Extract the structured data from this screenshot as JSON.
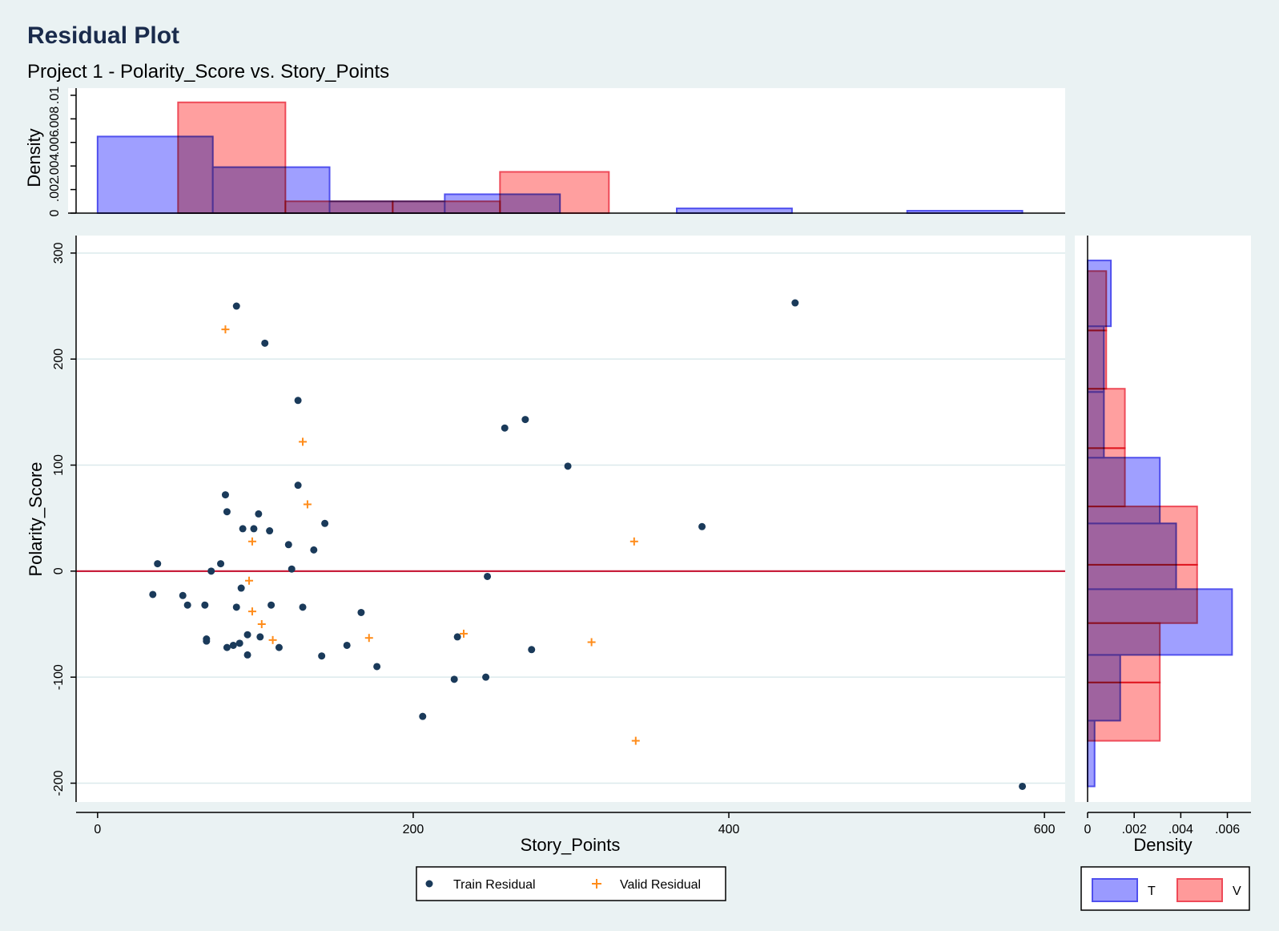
{
  "title": "Residual Plot",
  "subtitle": "Project 1 - Polarity_Score vs. Story_Points",
  "colors": {
    "background": "#eaf2f3",
    "train_fill": "#9a9aff",
    "train_edge": "#5050ee",
    "valid_fill": "#ff9a9a",
    "valid_edge": "#ee4a58",
    "train_marker": "#1a3a5a",
    "valid_marker": "#ff8c1a",
    "zero_line": "#c8203c"
  },
  "chart_data": [
    {
      "id": "scatter",
      "type": "scatter",
      "xlabel": "Story_Points",
      "ylabel": "Polarity_Score",
      "xlim": [
        -5,
        605
      ],
      "ylim": [
        -217,
        315
      ],
      "xticks": [
        0,
        200,
        400,
        600
      ],
      "xtick_labels": [
        "0",
        "200",
        "400",
        "600"
      ],
      "yticks": [
        -200,
        -100,
        0,
        100,
        200,
        300
      ],
      "ytick_labels": [
        "-200",
        "-100",
        "0",
        "100",
        "200",
        "300"
      ],
      "grid": true,
      "reference_line_y": 0,
      "legend": {
        "placement": "bottom",
        "entries": [
          "Train Residual",
          "Valid Residual"
        ]
      },
      "series": [
        {
          "name": "Train Residual",
          "marker": "circle",
          "points": [
            [
              88,
              250
            ],
            [
              106,
              215
            ],
            [
              127,
              161
            ],
            [
              442,
              253
            ],
            [
              258,
              135
            ],
            [
              271,
              143
            ],
            [
              298,
              99
            ],
            [
              127,
              81
            ],
            [
              81,
              72
            ],
            [
              82,
              56
            ],
            [
              102,
              54
            ],
            [
              92,
              40
            ],
            [
              99,
              40
            ],
            [
              109,
              38
            ],
            [
              144,
              45
            ],
            [
              121,
              25
            ],
            [
              137,
              20
            ],
            [
              123,
              2
            ],
            [
              383,
              42
            ],
            [
              38,
              7
            ],
            [
              78,
              7
            ],
            [
              72,
              0
            ],
            [
              247,
              -5
            ],
            [
              35,
              -22
            ],
            [
              54,
              -23
            ],
            [
              57,
              -32
            ],
            [
              68,
              -32
            ],
            [
              91,
              -16
            ],
            [
              88,
              -34
            ],
            [
              110,
              -32
            ],
            [
              130,
              -34
            ],
            [
              167,
              -39
            ],
            [
              69,
              -64
            ],
            [
              69,
              -66
            ],
            [
              95,
              -60
            ],
            [
              103,
              -62
            ],
            [
              86,
              -70
            ],
            [
              90,
              -68
            ],
            [
              82,
              -72
            ],
            [
              95,
              -79
            ],
            [
              115,
              -72
            ],
            [
              142,
              -80
            ],
            [
              158,
              -70
            ],
            [
              177,
              -90
            ],
            [
              228,
              -62
            ],
            [
              275,
              -74
            ],
            [
              226,
              -102
            ],
            [
              246,
              -100
            ],
            [
              206,
              -137
            ],
            [
              586,
              -203
            ]
          ]
        },
        {
          "name": "Valid Residual",
          "marker": "plus",
          "points": [
            [
              81,
              228
            ],
            [
              130,
              122
            ],
            [
              133,
              63
            ],
            [
              98,
              28
            ],
            [
              340,
              28
            ],
            [
              96,
              -9
            ],
            [
              98,
              -38
            ],
            [
              104,
              -50
            ],
            [
              111,
              -65
            ],
            [
              172,
              -63
            ],
            [
              232,
              -59
            ],
            [
              313,
              -67
            ],
            [
              341,
              -160
            ]
          ]
        }
      ]
    },
    {
      "id": "top-histogram",
      "type": "bar",
      "ylabel": "Density",
      "ylim": [
        0,
        0.0102
      ],
      "yticks": [
        0,
        0.002,
        0.004,
        0.006,
        0.008,
        0.01
      ],
      "ytick_labels": [
        "0",
        ".002",
        ".004",
        ".006",
        ".008",
        ".01"
      ],
      "series": [
        {
          "name": "T",
          "bins": [
            [
              0,
              73,
              0.0065
            ],
            [
              73,
              147,
              0.0039
            ],
            [
              147,
              220,
              0.001
            ],
            [
              220,
              293,
              0.0016
            ],
            [
              367,
              440,
              0.0004
            ],
            [
              513,
              586,
              0.0002
            ]
          ]
        },
        {
          "name": "V",
          "bins": [
            [
              51,
              119,
              0.0094
            ],
            [
              119,
              187,
              0.001
            ],
            [
              187,
              255,
              0.001
            ],
            [
              255,
              324,
              0.0035
            ]
          ]
        }
      ]
    },
    {
      "id": "right-histogram",
      "type": "bar",
      "orientation": "horizontal",
      "xlabel": "Density",
      "xlim": [
        0,
        0.0066
      ],
      "xticks": [
        0,
        0.002,
        0.004,
        0.006
      ],
      "xtick_labels": [
        "0",
        ".002",
        ".004",
        ".006"
      ],
      "legend": {
        "placement": "bottom",
        "entries": [
          "T",
          "V"
        ]
      },
      "series": [
        {
          "name": "T",
          "bins": [
            [
              -203,
              -141,
              0.0003
            ],
            [
              -141,
              -79,
              0.0014
            ],
            [
              -79,
              -17,
              0.0062
            ],
            [
              -17,
              45,
              0.0038
            ],
            [
              45,
              107,
              0.0031
            ],
            [
              107,
              169,
              0.0007
            ],
            [
              169,
              231,
              0.0007
            ],
            [
              231,
              293,
              0.001
            ]
          ]
        },
        {
          "name": "V",
          "bins": [
            [
              -160,
              -105,
              0.0031
            ],
            [
              -105,
              -49,
              0.0031
            ],
            [
              -49,
              6,
              0.0047
            ],
            [
              6,
              61,
              0.0047
            ],
            [
              61,
              116,
              0.0016
            ],
            [
              116,
              172,
              0.0016
            ],
            [
              172,
              227,
              0.0008
            ],
            [
              227,
              283,
              0.0008
            ]
          ]
        }
      ]
    }
  ]
}
